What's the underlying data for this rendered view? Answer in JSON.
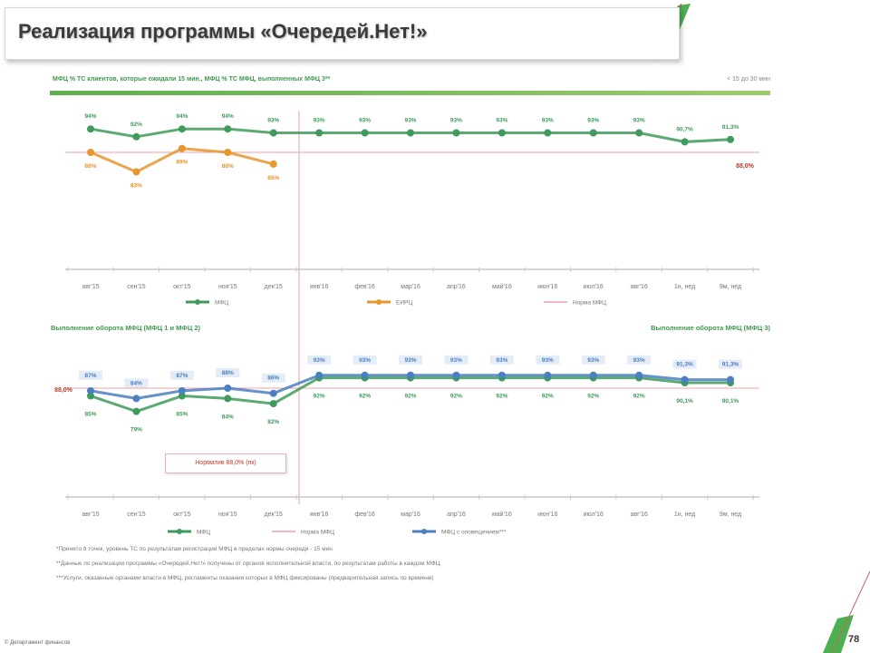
{
  "title": "Реализация программы «Очередей.Нет!»",
  "header": {
    "left": "МФЦ % ТС клиентов, которые ожидали 15 мин., МФЦ % ТС МФЦ, выполненных МФЦ 3**",
    "right": "< 15 до 30 мин"
  },
  "section2": {
    "left": "Выполнение оборота МФЦ (МФЦ 1 и МФЦ 2)",
    "right": "Выполнение оборота МФЦ (МФЦ 3)"
  },
  "annotation": "Норматив 88,0% (пк)",
  "footnotes": [
    "*Принято 8 точек, уровень ТС по результатам регистрации МФЦ в пределах нормы очереди - 15 мин",
    "**Данные по реализации программы «Очередей.Нет!» получены от органов исполнительной власти, по результатам работы в каждом МФЦ",
    "***Услуги, оказанные органами власти в МФЦ, регламенты оказания которых в МФЦ фиксированы (предварительная запись по времени)"
  ],
  "footer": {
    "left": "© Департамент финансов",
    "page": "78"
  },
  "colors": {
    "green": "#3f9a5c",
    "orange": "#e8962e",
    "pink": "#f0a0a8",
    "blue": "#4a7fc0",
    "red": "#c0392b",
    "brand": "#4caf50"
  },
  "chart_data": [
    {
      "type": "line",
      "categories": [
        "авг'15",
        "сен'15",
        "окт'15",
        "ноя'15",
        "дек'15",
        "янв'16",
        "фев'16",
        "мар'16",
        "апр'16",
        "май'16",
        "июн'16",
        "июл'16",
        "авг'16",
        "1н, нед",
        "9м, нед"
      ],
      "series": [
        {
          "name": "МФЦ",
          "color": "#3f9a5c",
          "values": [
            94,
            92,
            94,
            94,
            93,
            93,
            93,
            93,
            93,
            93,
            93,
            93,
            93,
            90.7,
            91.3
          ]
        },
        {
          "name": "ЕИРЦ",
          "color": "#e8962e",
          "values": [
            88,
            83,
            89,
            88,
            85,
            null,
            null,
            null,
            null,
            null,
            null,
            null,
            null,
            null,
            null
          ]
        }
      ],
      "target": {
        "name": "Норма МФЦ",
        "value": 88,
        "label": "88,0%",
        "color": "#f0a0a8"
      },
      "ylim": [
        57,
        100
      ],
      "grid": false,
      "legend": "bottom"
    },
    {
      "type": "line",
      "categories": [
        "авг'15",
        "сен'15",
        "окт'15",
        "ноя'15",
        "дек'15",
        "янв'16",
        "фев'16",
        "мар'16",
        "апр'16",
        "май'16",
        "июн'16",
        "июл'16",
        "авг'16",
        "1н, нед",
        "9м, нед"
      ],
      "series": [
        {
          "name": "МФЦ",
          "color": "#3f9a5c",
          "values": [
            85,
            79,
            85,
            84,
            82,
            92,
            92,
            92,
            92,
            92,
            92,
            92,
            92,
            90.1,
            90.1
          ]
        },
        {
          "name": "МФЦ с оповещением***",
          "color": "#4a7fc0",
          "values": [
            87,
            84,
            87,
            88,
            86,
            93,
            93,
            93,
            93,
            93,
            93,
            93,
            93,
            91.3,
            91.3
          ]
        }
      ],
      "target": {
        "name": "Норма МФЦ",
        "value": 88,
        "label": "88,0%",
        "color": "#f0a0a8"
      },
      "ylim": [
        46,
        100
      ],
      "grid": false,
      "legend": "bottom"
    }
  ]
}
